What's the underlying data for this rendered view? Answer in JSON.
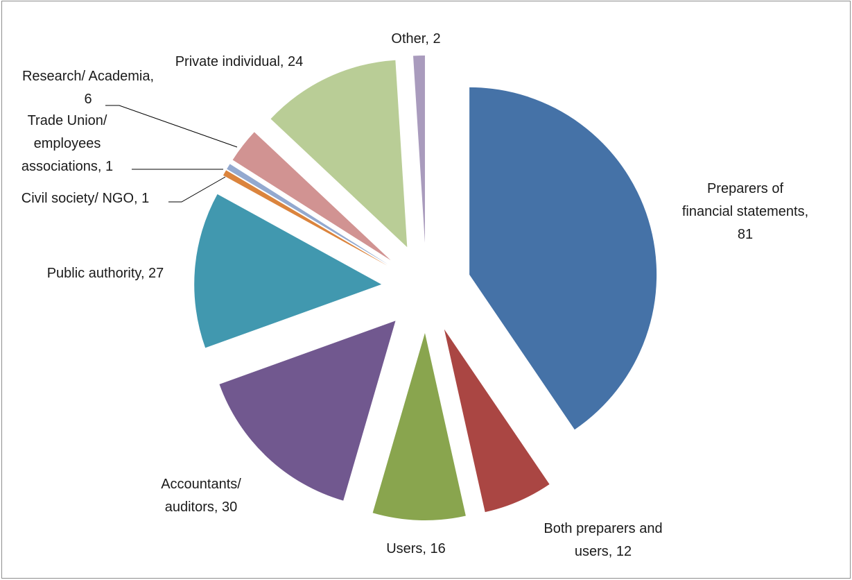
{
  "chart_data": {
    "type": "pie",
    "title": "",
    "legend": "none",
    "slices": [
      {
        "label": "Preparers of financial statements",
        "value": 81,
        "color": "#4572A7",
        "label_lines": [
          "Preparers of",
          "financial statements,",
          "81"
        ]
      },
      {
        "label": "Both preparers and users",
        "value": 12,
        "color": "#AA4643",
        "label_lines": [
          "Both preparers and",
          "users, 12"
        ]
      },
      {
        "label": "Users",
        "value": 16,
        "color": "#89A54E",
        "label_lines": [
          "Users, 16"
        ]
      },
      {
        "label": "Accountants/ auditors",
        "value": 30,
        "color": "#71588F",
        "label_lines": [
          "Accountants/",
          "auditors, 30"
        ]
      },
      {
        "label": "Public authority",
        "value": 27,
        "color": "#4198AF",
        "label_lines": [
          "Public authority, 27"
        ]
      },
      {
        "label": "Civil society/ NGO",
        "value": 1,
        "color": "#DB843D",
        "label_lines": [
          "Civil society/ NGO, 1"
        ]
      },
      {
        "label": "Trade Union/ employees associations",
        "value": 1,
        "color": "#93A9CF",
        "label_lines": [
          "Trade Union/",
          "employees",
          "associations, 1"
        ]
      },
      {
        "label": "Research/ Academia",
        "value": 6,
        "color": "#D19392",
        "label_lines": [
          "Research/ Academia,",
          "6"
        ]
      },
      {
        "label": "Private individual",
        "value": 24,
        "color": "#B9CD96",
        "label_lines": [
          "Private individual, 24"
        ]
      },
      {
        "label": "Other",
        "value": 2,
        "color": "#A99BBD",
        "label_lines": [
          "Other, 2"
        ]
      }
    ]
  }
}
